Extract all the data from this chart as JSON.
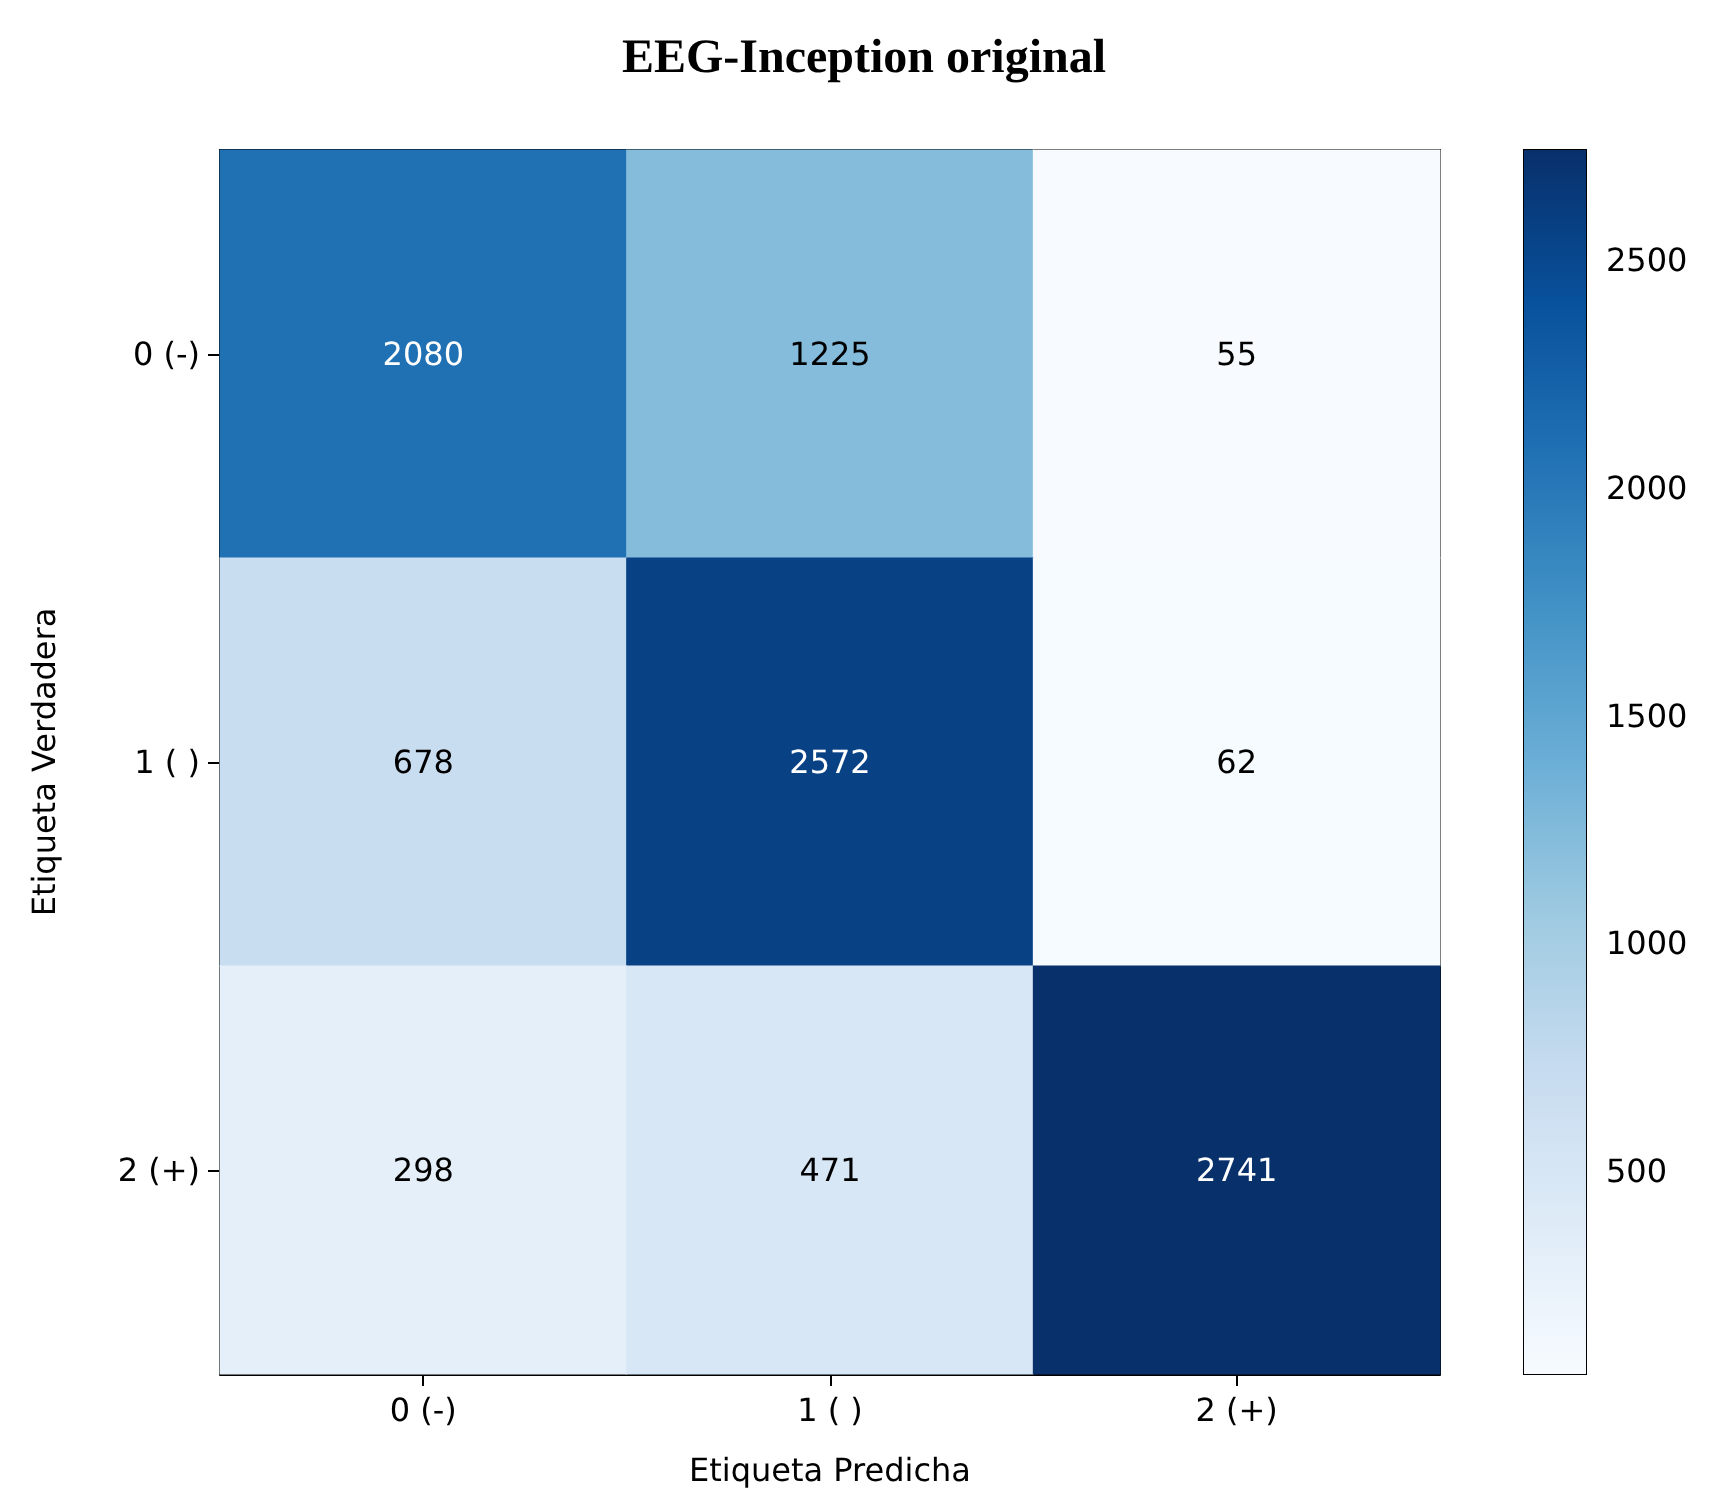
{
  "chart_data": {
    "type": "heatmap",
    "title": "EEG-Inception original",
    "xlabel": "Etiqueta Predicha",
    "ylabel": "Etiqueta Verdadera",
    "categories": [
      "0 (-)",
      "1 ( )",
      "2 (+)"
    ],
    "y_categories": [
      "0 (-)",
      "1 ( )",
      "2 (+)"
    ],
    "cells": [
      [
        2080,
        1225,
        55
      ],
      [
        678,
        2572,
        62
      ],
      [
        298,
        471,
        2741
      ]
    ],
    "data_labels": true,
    "clim": [
      55,
      2741
    ],
    "cticks": [
      500,
      1000,
      1500,
      2000,
      2500
    ]
  }
}
